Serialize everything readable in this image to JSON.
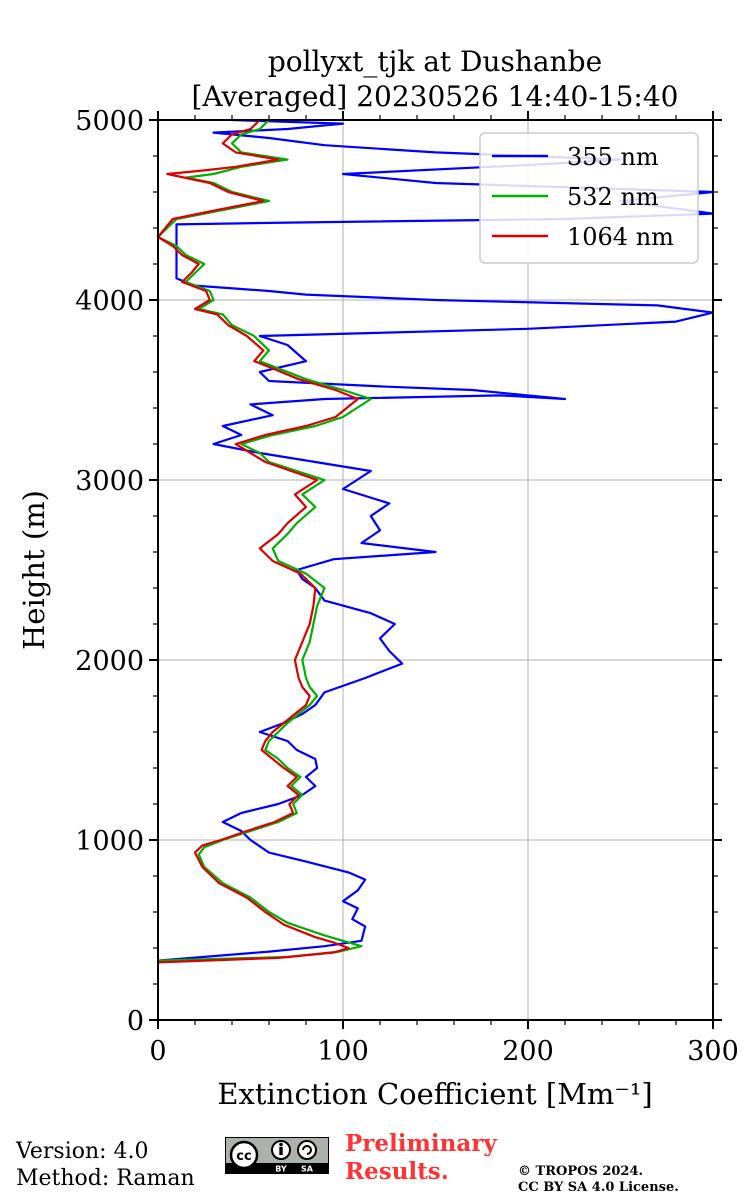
{
  "chart_data": {
    "type": "line",
    "title": "pollyxt_tjk at Dushanbe",
    "subtitle": "[Averaged] 20230526 14:40-15:40",
    "xlabel": "Extinction Coefficient [Mm⁻¹]",
    "ylabel": "Height (m)",
    "xlim": [
      0,
      300
    ],
    "ylim": [
      0,
      5000
    ],
    "xticks": [
      0,
      100,
      200,
      300
    ],
    "yticks": [
      0,
      1000,
      2000,
      3000,
      4000,
      5000
    ],
    "grid": true,
    "legend_position": "top-right",
    "series": [
      {
        "name": "355 nm",
        "color": "#0000ff",
        "points": [
          [
            0,
            330
          ],
          [
            60,
            380
          ],
          [
            90,
            410
          ],
          [
            110,
            440
          ],
          [
            112,
            520
          ],
          [
            105,
            560
          ],
          [
            108,
            620
          ],
          [
            100,
            660
          ],
          [
            108,
            720
          ],
          [
            112,
            780
          ],
          [
            103,
            820
          ],
          [
            80,
            880
          ],
          [
            60,
            930
          ],
          [
            50,
            1000
          ],
          [
            45,
            1050
          ],
          [
            35,
            1100
          ],
          [
            45,
            1150
          ],
          [
            65,
            1200
          ],
          [
            78,
            1250
          ],
          [
            85,
            1300
          ],
          [
            80,
            1350
          ],
          [
            86,
            1400
          ],
          [
            85,
            1450
          ],
          [
            75,
            1500
          ],
          [
            70,
            1550
          ],
          [
            55,
            1600
          ],
          [
            68,
            1650
          ],
          [
            78,
            1700
          ],
          [
            85,
            1750
          ],
          [
            90,
            1820
          ],
          [
            112,
            1900
          ],
          [
            132,
            1980
          ],
          [
            125,
            2050
          ],
          [
            120,
            2120
          ],
          [
            128,
            2200
          ],
          [
            115,
            2260
          ],
          [
            90,
            2330
          ],
          [
            85,
            2400
          ],
          [
            78,
            2450
          ],
          [
            75,
            2500
          ],
          [
            95,
            2560
          ],
          [
            150,
            2600
          ],
          [
            110,
            2650
          ],
          [
            120,
            2720
          ],
          [
            115,
            2800
          ],
          [
            125,
            2870
          ],
          [
            100,
            2950
          ],
          [
            115,
            3050
          ],
          [
            85,
            3100
          ],
          [
            55,
            3150
          ],
          [
            30,
            3200
          ],
          [
            45,
            3250
          ],
          [
            35,
            3300
          ],
          [
            62,
            3360
          ],
          [
            50,
            3420
          ],
          [
            90,
            3450
          ],
          [
            185,
            3470
          ],
          [
            220,
            3450
          ],
          [
            170,
            3500
          ],
          [
            120,
            3520
          ],
          [
            60,
            3550
          ],
          [
            55,
            3600
          ],
          [
            80,
            3660
          ],
          [
            70,
            3750
          ],
          [
            55,
            3800
          ],
          [
            200,
            3840
          ],
          [
            280,
            3880
          ],
          [
            300,
            3930
          ],
          [
            270,
            3970
          ],
          [
            150,
            4000
          ],
          [
            80,
            4030
          ],
          [
            60,
            4050
          ],
          [
            20,
            4080
          ],
          [
            10,
            4120
          ],
          [
            10,
            4300
          ],
          [
            10,
            4420
          ],
          [
            70,
            4430
          ],
          [
            220,
            4450
          ],
          [
            300,
            4480
          ],
          [
            250,
            4550
          ],
          [
            300,
            4600
          ],
          [
            150,
            4650
          ],
          [
            100,
            4700
          ],
          [
            200,
            4750
          ],
          [
            250,
            4780
          ],
          [
            150,
            4820
          ],
          [
            90,
            4860
          ],
          [
            60,
            4900
          ],
          [
            30,
            4930
          ],
          [
            70,
            4950
          ],
          [
            100,
            4980
          ],
          [
            40,
            5000
          ]
        ]
      },
      {
        "name": "532 nm",
        "color": "#00b000",
        "points": [
          [
            0,
            330
          ],
          [
            70,
            350
          ],
          [
            98,
            380
          ],
          [
            110,
            410
          ],
          [
            100,
            440
          ],
          [
            90,
            470
          ],
          [
            70,
            540
          ],
          [
            60,
            600
          ],
          [
            50,
            680
          ],
          [
            35,
            760
          ],
          [
            25,
            850
          ],
          [
            22,
            920
          ],
          [
            25,
            960
          ],
          [
            35,
            1000
          ],
          [
            50,
            1050
          ],
          [
            65,
            1100
          ],
          [
            75,
            1150
          ],
          [
            73,
            1200
          ],
          [
            78,
            1250
          ],
          [
            72,
            1300
          ],
          [
            77,
            1350
          ],
          [
            70,
            1400
          ],
          [
            65,
            1450
          ],
          [
            58,
            1500
          ],
          [
            60,
            1550
          ],
          [
            65,
            1600
          ],
          [
            70,
            1650
          ],
          [
            76,
            1700
          ],
          [
            82,
            1750
          ],
          [
            86,
            1800
          ],
          [
            82,
            1850
          ],
          [
            80,
            1900
          ],
          [
            78,
            2000
          ],
          [
            82,
            2100
          ],
          [
            84,
            2200
          ],
          [
            86,
            2300
          ],
          [
            90,
            2400
          ],
          [
            80,
            2480
          ],
          [
            65,
            2550
          ],
          [
            62,
            2620
          ],
          [
            70,
            2700
          ],
          [
            75,
            2760
          ],
          [
            85,
            2850
          ],
          [
            78,
            2920
          ],
          [
            90,
            3000
          ],
          [
            75,
            3050
          ],
          [
            60,
            3100
          ],
          [
            55,
            3150
          ],
          [
            45,
            3200
          ],
          [
            62,
            3250
          ],
          [
            85,
            3300
          ],
          [
            100,
            3350
          ],
          [
            115,
            3450
          ],
          [
            100,
            3500
          ],
          [
            80,
            3560
          ],
          [
            65,
            3620
          ],
          [
            55,
            3660
          ],
          [
            60,
            3720
          ],
          [
            52,
            3800
          ],
          [
            40,
            3860
          ],
          [
            35,
            3920
          ],
          [
            22,
            3950
          ],
          [
            30,
            4000
          ],
          [
            28,
            4050
          ],
          [
            15,
            4100
          ],
          [
            20,
            4150
          ],
          [
            25,
            4200
          ],
          [
            15,
            4250
          ],
          [
            10,
            4300
          ],
          [
            0,
            4350
          ],
          [
            10,
            4450
          ],
          [
            35,
            4500
          ],
          [
            60,
            4550
          ],
          [
            40,
            4600
          ],
          [
            30,
            4650
          ],
          [
            15,
            4680
          ],
          [
            30,
            4700
          ],
          [
            45,
            4740
          ],
          [
            70,
            4780
          ],
          [
            45,
            4820
          ],
          [
            40,
            4870
          ],
          [
            45,
            4920
          ],
          [
            55,
            4950
          ],
          [
            60,
            5000
          ]
        ]
      },
      {
        "name": "1064 nm",
        "color": "#dd0000",
        "points": [
          [
            0,
            320
          ],
          [
            65,
            345
          ],
          [
            95,
            375
          ],
          [
            103,
            400
          ],
          [
            95,
            430
          ],
          [
            85,
            460
          ],
          [
            68,
            530
          ],
          [
            58,
            600
          ],
          [
            48,
            680
          ],
          [
            33,
            760
          ],
          [
            24,
            850
          ],
          [
            20,
            930
          ],
          [
            24,
            970
          ],
          [
            34,
            1000
          ],
          [
            48,
            1050
          ],
          [
            63,
            1100
          ],
          [
            73,
            1150
          ],
          [
            71,
            1200
          ],
          [
            76,
            1250
          ],
          [
            70,
            1300
          ],
          [
            75,
            1350
          ],
          [
            68,
            1400
          ],
          [
            62,
            1450
          ],
          [
            56,
            1500
          ],
          [
            58,
            1550
          ],
          [
            62,
            1600
          ],
          [
            68,
            1650
          ],
          [
            74,
            1700
          ],
          [
            80,
            1750
          ],
          [
            82,
            1800
          ],
          [
            78,
            1850
          ],
          [
            76,
            1900
          ],
          [
            74,
            2000
          ],
          [
            78,
            2100
          ],
          [
            82,
            2200
          ],
          [
            84,
            2300
          ],
          [
            85,
            2400
          ],
          [
            77,
            2480
          ],
          [
            62,
            2550
          ],
          [
            55,
            2620
          ],
          [
            65,
            2700
          ],
          [
            70,
            2760
          ],
          [
            80,
            2850
          ],
          [
            74,
            2920
          ],
          [
            86,
            3000
          ],
          [
            72,
            3050
          ],
          [
            58,
            3100
          ],
          [
            50,
            3150
          ],
          [
            42,
            3200
          ],
          [
            58,
            3250
          ],
          [
            80,
            3300
          ],
          [
            96,
            3350
          ],
          [
            108,
            3450
          ],
          [
            96,
            3500
          ],
          [
            76,
            3560
          ],
          [
            62,
            3620
          ],
          [
            52,
            3660
          ],
          [
            57,
            3720
          ],
          [
            48,
            3800
          ],
          [
            38,
            3860
          ],
          [
            32,
            3920
          ],
          [
            20,
            3950
          ],
          [
            28,
            4000
          ],
          [
            26,
            4050
          ],
          [
            13,
            4100
          ],
          [
            18,
            4150
          ],
          [
            22,
            4200
          ],
          [
            13,
            4250
          ],
          [
            8,
            4300
          ],
          [
            0,
            4350
          ],
          [
            8,
            4450
          ],
          [
            32,
            4500
          ],
          [
            57,
            4550
          ],
          [
            38,
            4600
          ],
          [
            28,
            4650
          ],
          [
            5,
            4700
          ],
          [
            25,
            4720
          ],
          [
            42,
            4740
          ],
          [
            65,
            4780
          ],
          [
            42,
            4820
          ],
          [
            35,
            4870
          ],
          [
            40,
            4920
          ],
          [
            50,
            4950
          ],
          [
            55,
            5000
          ]
        ]
      }
    ]
  },
  "footer": {
    "version_line": "Version: 4.0",
    "method_line": "Method: Raman",
    "preliminary_line1": "Preliminary",
    "preliminary_line2": "Results.",
    "copyright_line1": "© TROPOS 2024.",
    "copyright_line2": "CC BY SA 4.0 License.",
    "license_badge": {
      "icon": "cc-by-sa-icon",
      "cc_text": "cc",
      "by_text": "BY",
      "sa_text": "SA",
      "color": "#aab2ab"
    }
  }
}
